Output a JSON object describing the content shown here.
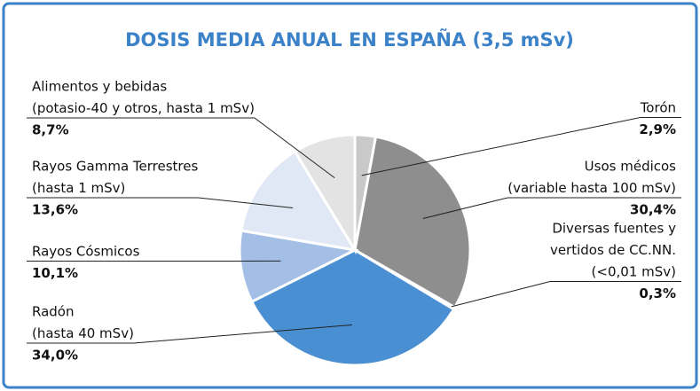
{
  "chart_data": {
    "type": "pie",
    "title": "DOSIS MEDIA ANUAL EN ESPAÑA (3,5 mSv)",
    "categories": [
      [
        "Torón"
      ],
      [
        "Usos médicos",
        "(variable hasta 100 mSv)"
      ],
      [
        "Diversas fuentes y",
        "vertidos de CC.NN.",
        "(<0,01 mSv)"
      ],
      [
        "Radón",
        "(hasta 40 mSv)"
      ],
      [
        "Rayos Cósmicos"
      ],
      [
        "Rayos Gamma Terrestres",
        "(hasta 1 mSv)"
      ],
      [
        "Alimentos y bebidas",
        "(potasio-40 y otros, hasta 1 mSv)"
      ]
    ],
    "values": [
      2.9,
      30.4,
      0.3,
      34.0,
      10.1,
      13.6,
      8.7
    ],
    "value_labels": [
      "2,9%",
      "30,4%",
      "0,3%",
      "34,0%",
      "10,1%",
      "13,6%",
      "8,7%"
    ],
    "colors": [
      "#c9c9c9",
      "#8e8e8e",
      "#1f1f1f",
      "#4a8fd2",
      "#a3bfe6",
      "#e1e8f5",
      "#e3e3e3"
    ]
  }
}
